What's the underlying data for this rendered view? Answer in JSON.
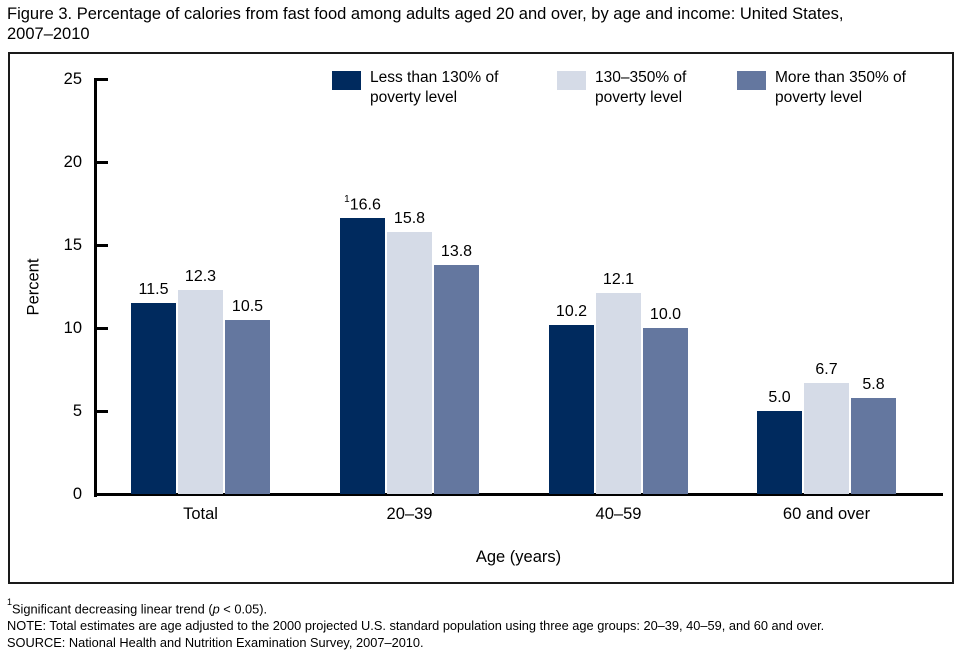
{
  "title_line1": "Figure 3. Percentage of calories from fast food among adults aged 20 and over, by age and income: United States,",
  "title_line2": "2007–2010",
  "chart_data": {
    "type": "bar",
    "title": "Percentage of calories from fast food among adults aged 20 and over, by age and income: United States, 2007–2010",
    "categories": [
      "Total",
      "20–39",
      "40–59",
      "60 and over"
    ],
    "series": [
      {
        "name": "Less than 130% of poverty level",
        "legend_lines": [
          "Less than 130% of",
          "poverty level"
        ],
        "color": "#002a5e",
        "values": [
          11.5,
          16.6,
          10.2,
          5.0
        ],
        "label_sups": [
          "",
          "1",
          "",
          ""
        ]
      },
      {
        "name": "130–350% of poverty level",
        "legend_lines": [
          "130–350% of",
          "poverty level"
        ],
        "color": "#d5dbe7",
        "values": [
          12.3,
          15.8,
          12.1,
          6.7
        ],
        "label_sups": [
          "",
          "",
          "",
          ""
        ]
      },
      {
        "name": "More than 350% of poverty level",
        "legend_lines": [
          "More than 350% of",
          "poverty level"
        ],
        "color": "#64779f",
        "values": [
          10.5,
          13.8,
          10.0,
          5.8
        ],
        "label_sups": [
          "",
          "",
          "",
          ""
        ]
      }
    ],
    "xlabel": "Age (years)",
    "ylabel": "Percent",
    "ylim": [
      0,
      25
    ],
    "yticks": [
      0,
      5,
      10,
      15,
      20,
      25
    ],
    "grid": false,
    "legend_position": "top",
    "value_label_decimals": 1
  },
  "footnotes": {
    "sig_sup": "1",
    "sig_text_pre": "Significant decreasing linear trend (",
    "sig_p": "p",
    "sig_text_post": " < 0.05).",
    "note": "NOTE: Total estimates are age adjusted to the 2000 projected U.S. standard population using three age groups: 20–39, 40–59, and 60 and over.",
    "source": "SOURCE: National Health and Nutrition Examination Survey, 2007–2010."
  }
}
